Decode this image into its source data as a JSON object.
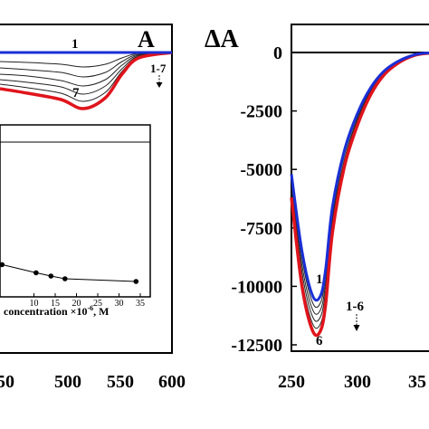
{
  "chart_data": [
    {
      "type": "line",
      "panel_label": "A",
      "title": "",
      "xlabel": "",
      "ylabel": "",
      "x_ticks": [
        "500",
        "550",
        "600"
      ],
      "x_ticks_partial": [
        "50"
      ],
      "xlim": [
        445,
        600
      ],
      "ylim": [
        -1,
        0.15
      ],
      "curve_labels": {
        "top": "1",
        "bottom": "7",
        "range": "1-7"
      },
      "series": [
        {
          "name": "1",
          "color": "#1a2fd6",
          "x": [
            445,
            520,
            550,
            580,
            600
          ],
          "y": [
            0,
            0,
            0,
            0,
            0
          ]
        },
        {
          "name": "2",
          "color": "#222222",
          "x": [
            445,
            470,
            500,
            520,
            540,
            555,
            570,
            600
          ],
          "y": [
            -0.1,
            -0.11,
            -0.13,
            -0.16,
            -0.13,
            -0.06,
            -0.01,
            0
          ]
        },
        {
          "name": "3",
          "color": "#222222",
          "x": [
            445,
            470,
            500,
            520,
            540,
            555,
            570,
            600
          ],
          "y": [
            -0.17,
            -0.19,
            -0.22,
            -0.27,
            -0.22,
            -0.1,
            -0.02,
            0
          ]
        },
        {
          "name": "4",
          "color": "#222222",
          "x": [
            445,
            470,
            500,
            520,
            540,
            555,
            570,
            600
          ],
          "y": [
            -0.24,
            -0.26,
            -0.31,
            -0.37,
            -0.3,
            -0.14,
            -0.03,
            0
          ]
        },
        {
          "name": "5",
          "color": "#222222",
          "x": [
            445,
            470,
            500,
            520,
            540,
            555,
            570,
            600
          ],
          "y": [
            -0.3,
            -0.33,
            -0.38,
            -0.46,
            -0.37,
            -0.18,
            -0.04,
            0
          ]
        },
        {
          "name": "6",
          "color": "#222222",
          "x": [
            445,
            470,
            500,
            520,
            540,
            555,
            570,
            600
          ],
          "y": [
            -0.35,
            -0.39,
            -0.45,
            -0.54,
            -0.44,
            -0.21,
            -0.05,
            0
          ]
        },
        {
          "name": "7",
          "color": "#e0141c",
          "x": [
            445,
            470,
            500,
            520,
            540,
            555,
            570,
            600
          ],
          "y": [
            -0.4,
            -0.45,
            -0.52,
            -0.62,
            -0.5,
            -0.24,
            -0.06,
            0
          ]
        }
      ]
    },
    {
      "type": "scatter",
      "role": "inset",
      "xlabel_visible": "concentration ×10",
      "xlabel_exponent": "-6",
      "xlabel_unit": ", M",
      "x_ticks": [
        "10",
        "15",
        "20",
        "25",
        "30",
        "35"
      ],
      "xlim": [
        1.8,
        36
      ],
      "ylim": [
        0,
        1
      ],
      "points": [
        {
          "x": 2.5,
          "y": 0.56
        },
        {
          "x": 10.5,
          "y": 0.41
        },
        {
          "x": 14,
          "y": 0.35
        },
        {
          "x": 17.3,
          "y": 0.3
        },
        {
          "x": 34,
          "y": 0.25
        }
      ]
    },
    {
      "type": "line",
      "panel_label": "",
      "ylabel": "ΔA",
      "y_ticks": [
        "0",
        "-2500",
        "-5000",
        "-7500",
        "-10000",
        "-12500"
      ],
      "x_ticks": [
        "250",
        "300"
      ],
      "x_ticks_partial": [
        "35"
      ],
      "xlim": [
        250,
        370
      ],
      "ylim": [
        -13000,
        700
      ],
      "curve_labels": {
        "top": "1",
        "bottom": "6",
        "range": "1-6"
      },
      "series": [
        {
          "name": "1",
          "color": "#1a2fd6",
          "x": [
            250,
            258,
            266,
            272,
            276,
            281,
            290,
            300,
            310,
            320,
            330,
            340,
            350,
            370
          ],
          "y": [
            -5200,
            -8500,
            -10400,
            -10400,
            -9200,
            -6600,
            -4200,
            -2600,
            -1500,
            -800,
            -400,
            -150,
            -30,
            0
          ]
        },
        {
          "name": "2",
          "color": "#222222",
          "x": [
            250,
            258,
            266,
            272,
            276,
            281,
            290,
            300,
            310,
            320,
            330,
            340,
            350,
            370
          ],
          "y": [
            -5400,
            -8800,
            -10700,
            -10700,
            -9500,
            -6900,
            -4400,
            -2700,
            -1600,
            -850,
            -420,
            -160,
            -35,
            0
          ]
        },
        {
          "name": "3",
          "color": "#222222",
          "x": [
            250,
            258,
            266,
            272,
            276,
            281,
            290,
            300,
            310,
            320,
            330,
            340,
            350,
            370
          ],
          "y": [
            -5600,
            -9100,
            -11000,
            -11000,
            -9800,
            -7100,
            -4600,
            -2800,
            -1650,
            -880,
            -440,
            -170,
            -40,
            0
          ]
        },
        {
          "name": "4",
          "color": "#222222",
          "x": [
            250,
            258,
            266,
            272,
            276,
            281,
            290,
            300,
            310,
            320,
            330,
            340,
            350,
            370
          ],
          "y": [
            -5800,
            -9400,
            -11300,
            -11300,
            -10100,
            -7300,
            -4700,
            -2900,
            -1700,
            -900,
            -450,
            -175,
            -40,
            0
          ]
        },
        {
          "name": "5",
          "color": "#222222",
          "x": [
            250,
            258,
            266,
            272,
            276,
            281,
            290,
            300,
            310,
            320,
            330,
            340,
            350,
            370
          ],
          "y": [
            -6000,
            -9700,
            -11600,
            -11600,
            -10400,
            -7500,
            -4800,
            -3000,
            -1750,
            -930,
            -470,
            -180,
            -45,
            0
          ]
        },
        {
          "name": "6",
          "color": "#e0141c",
          "x": [
            250,
            258,
            266,
            272,
            276,
            281,
            290,
            300,
            310,
            320,
            330,
            340,
            350,
            370
          ],
          "y": [
            -6200,
            -10000,
            -11900,
            -11900,
            -10700,
            -7700,
            -4900,
            -3100,
            -1800,
            -960,
            -480,
            -185,
            -45,
            0
          ]
        }
      ]
    }
  ]
}
